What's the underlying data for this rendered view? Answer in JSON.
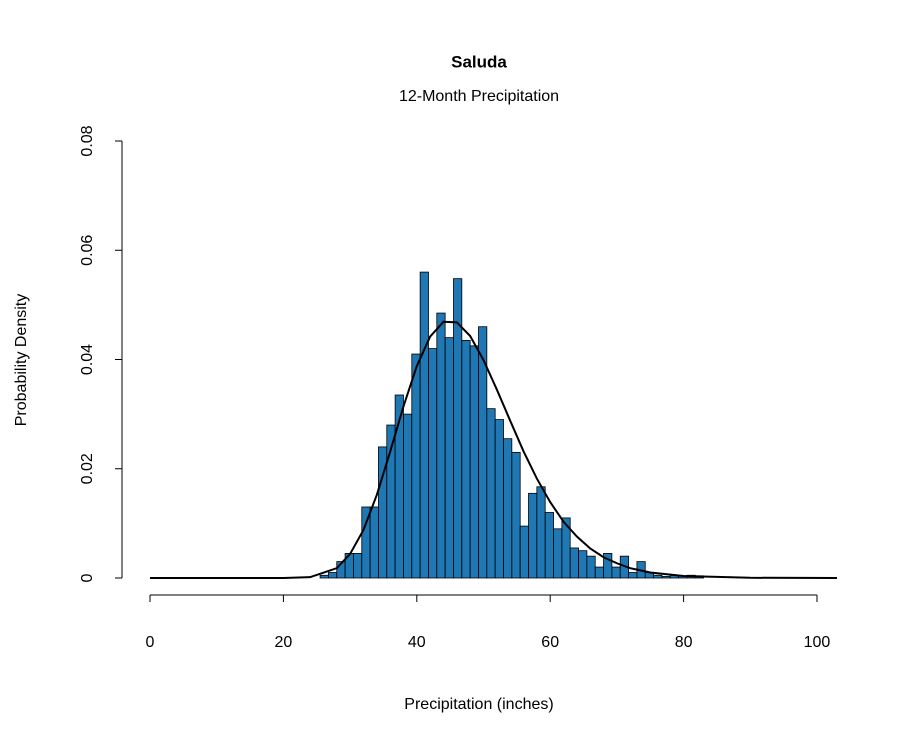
{
  "chart_data": {
    "type": "histogram",
    "title": "Saluda",
    "subtitle": "12-Month Precipitation",
    "x_label": "Precipitation (inches)",
    "y_label": "Probability Density",
    "bins": [
      25.5,
      26.75,
      28,
      29.25,
      30.5,
      31.75,
      33,
      34.25,
      35.5,
      36.75,
      38,
      39.25,
      40.5,
      41.75,
      43,
      44.25,
      45.5,
      46.75,
      48,
      49.25,
      50.5,
      51.75,
      53,
      54.25,
      55.5,
      56.75,
      58,
      59.25,
      60.5,
      61.75,
      63,
      64.25,
      65.5,
      66.75,
      68,
      69.25,
      70.5,
      71.75,
      73,
      74.25,
      75.5,
      76.75,
      78,
      79.25,
      80.5,
      81.75,
      83
    ],
    "values": [
      0.0005,
      0.001,
      0.003,
      0.0045,
      0.0045,
      0.013,
      0.013,
      0.024,
      0.028,
      0.0335,
      0.03,
      0.041,
      0.056,
      0.042,
      0.0485,
      0.044,
      0.0548,
      0.0435,
      0.0425,
      0.046,
      0.031,
      0.029,
      0.0255,
      0.023,
      0.0095,
      0.0155,
      0.0167,
      0.012,
      0.009,
      0.011,
      0.0055,
      0.005,
      0.004,
      0.002,
      0.0045,
      0.002,
      0.004,
      0.001,
      0.003,
      0.001,
      0.0005,
      0.0003,
      0.0005,
      0.0004,
      0.0005,
      0.0004
    ],
    "color": "#1f77b4",
    "curve": {
      "color": "#000000",
      "x": [
        0,
        10,
        20,
        24,
        28,
        30,
        32,
        34,
        36,
        38,
        40,
        42,
        44,
        46,
        48,
        50,
        52,
        54,
        56,
        58,
        60,
        62,
        64,
        66,
        68,
        70,
        72,
        75,
        80,
        90,
        103
      ],
      "values": [
        0,
        0,
        0,
        0.00015,
        0.0018,
        0.0044,
        0.0088,
        0.0152,
        0.0231,
        0.0314,
        0.0388,
        0.0442,
        0.0469,
        0.0468,
        0.0443,
        0.0399,
        0.0345,
        0.0288,
        0.0232,
        0.0182,
        0.0139,
        0.0103,
        0.0076,
        0.0054,
        0.0038,
        0.0027,
        0.0018,
        0.001,
        0.00036,
        4e-05,
        0
      ]
    },
    "xlim": [
      -4.2,
      103
    ],
    "ylim": [
      0,
      0.08
    ],
    "xticks": [
      0,
      20,
      40,
      60,
      80,
      100
    ],
    "yticks": [
      0,
      0.02,
      0.04,
      0.06,
      0.08
    ]
  }
}
